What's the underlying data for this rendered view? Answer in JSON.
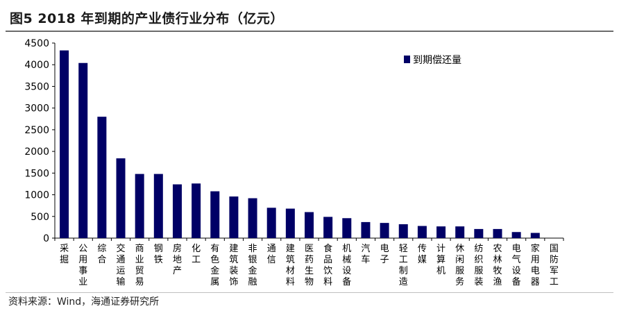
{
  "figure": {
    "title": "图5  2018 年到期的产业债行业分布（亿元）",
    "source": "资料来源：Wind，海通证券研究所"
  },
  "colors": {
    "bar": "#000066",
    "axis": "#000000",
    "rule": "#6b6b6b"
  },
  "chart_data": {
    "type": "bar",
    "title": "",
    "xlabel": "",
    "ylabel": "",
    "ylim": [
      0,
      4500
    ],
    "yticks": [
      0,
      500,
      1000,
      1500,
      2000,
      2500,
      3000,
      3500,
      4000,
      4500
    ],
    "grid": false,
    "legend_position": "top-right",
    "categories": [
      "采掘",
      "公用事业",
      "综合",
      "交通运输",
      "商业贸易",
      "钢铁",
      "房地产",
      "化工",
      "有色金属",
      "建筑装饰",
      "非银金融",
      "通信",
      "建筑材料",
      "医药生物",
      "食品饮料",
      "机械设备",
      "汽车",
      "电子",
      "轻工制造",
      "传媒",
      "计算机",
      "休闲服务",
      "纺织服装",
      "农林牧渔",
      "电气设备",
      "家用电器",
      "国防军工"
    ],
    "series": [
      {
        "name": "到期偿还量",
        "values": [
          4330,
          4040,
          2800,
          1840,
          1480,
          1480,
          1240,
          1260,
          1080,
          960,
          920,
          700,
          680,
          600,
          490,
          460,
          370,
          350,
          320,
          280,
          270,
          270,
          210,
          210,
          140,
          120,
          0
        ]
      }
    ]
  }
}
